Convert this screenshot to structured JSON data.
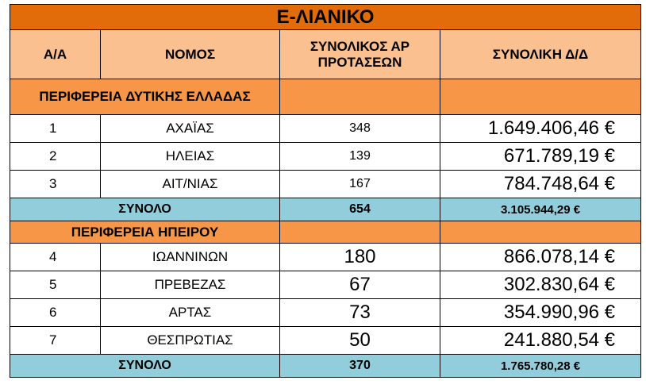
{
  "title": "Ε-ΛΙΑΝΙΚΟ",
  "headers": {
    "aa": "Α/Α",
    "nomos": "ΝΟΜΟΣ",
    "count": "ΣΥΝΟΛΙΚΟΣ ΑΡ ΠΡΟΤΑΣΕΩΝ",
    "amount": "ΣΥΝΟΛΙΚΗ Δ/Δ"
  },
  "regions": [
    {
      "name": "ΠΕΡΙΦΕΡΕΙΑ ΔΥΤΙΚΗΣ ΕΛΛΑΔΑΣ",
      "rows": [
        {
          "aa": "1",
          "nomos": "ΑΧΑΪΑΣ",
          "count": "348",
          "amount": "1.649.406,46 €"
        },
        {
          "aa": "2",
          "nomos": "ΗΛΕΙΑΣ",
          "count": "139",
          "amount": "671.789,19 €"
        },
        {
          "aa": "3",
          "nomos": "ΑΙΤ/ΝΙΑΣ",
          "count": "167",
          "amount": "784.748,64 €"
        }
      ],
      "total": {
        "label": "ΣΥΝΟΛΟ",
        "count": "654",
        "amount": "3.105.944,29 €"
      }
    },
    {
      "name": "ΠΕΡΙΦΕΡΕΙΑ ΗΠΕΙΡΟΥ",
      "rows": [
        {
          "aa": "4",
          "nomos": "ΙΩΑΝΝΙΝΩΝ",
          "count": "180",
          "amount": "866.078,14 €"
        },
        {
          "aa": "5",
          "nomos": "ΠΡΕΒΕΖΑΣ",
          "count": "67",
          "amount": "302.830,64 €"
        },
        {
          "aa": "6",
          "nomos": "ΑΡΤΑΣ",
          "count": "73",
          "amount": "354.990,96 €"
        },
        {
          "aa": "7",
          "nomos": "ΘΕΣΠΡΩΤΙΑΣ",
          "count": "50",
          "amount": "241.880,54 €"
        }
      ],
      "total": {
        "label": "ΣΥΝΟΛΟ",
        "count": "370",
        "amount": "1.765.780,28 €"
      }
    }
  ],
  "colors": {
    "title_bg": "#e36c0a",
    "header_bg": "#fbc08f",
    "region_bg": "#f79646",
    "total_bg": "#92cddc"
  }
}
